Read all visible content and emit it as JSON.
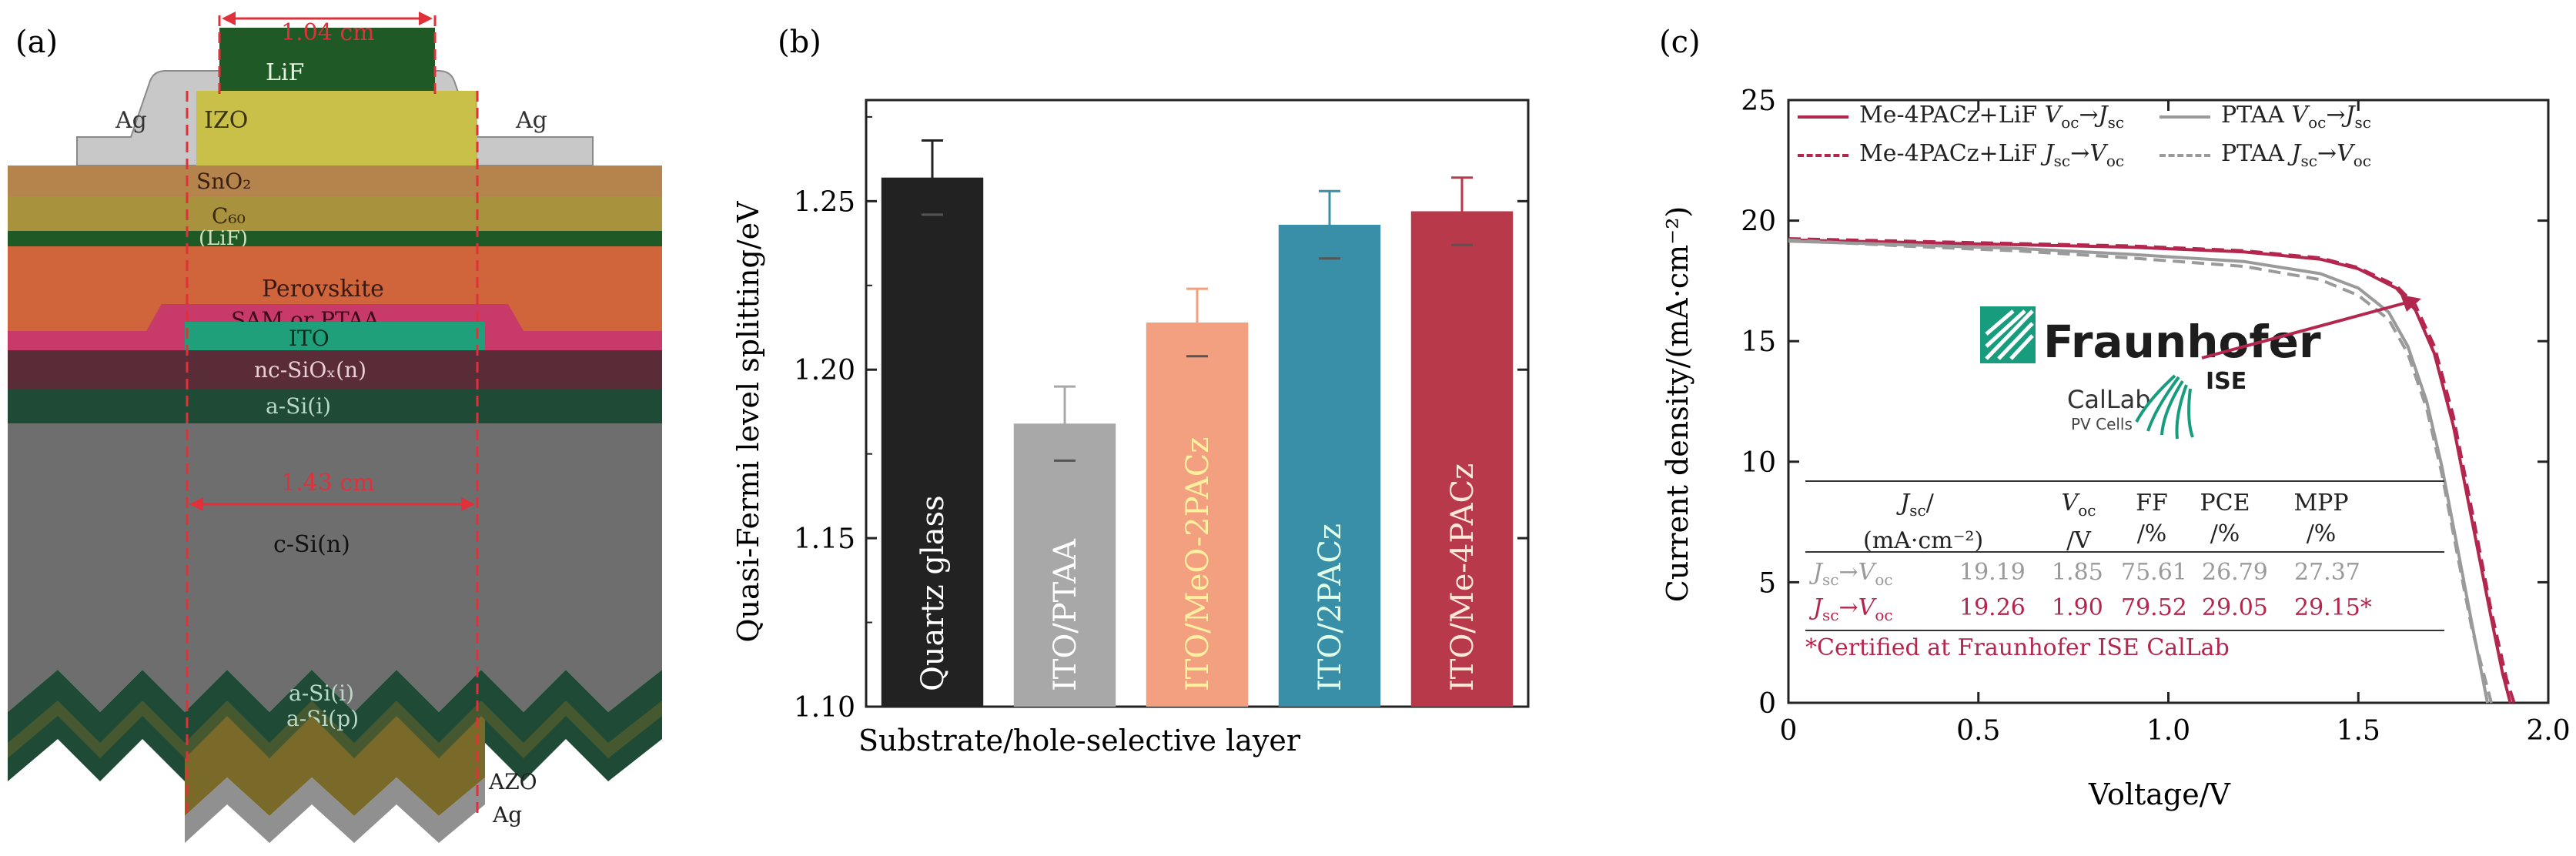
{
  "panels": {
    "a": {
      "label": "(a)",
      "width_annotation": "1.04 cm",
      "width_annotation_lower": "1.43 cm",
      "layers": {
        "lif_top": "LiF",
        "izo": "IZO",
        "ag_left": "Ag",
        "ag_right": "Ag",
        "sno2": "SnO₂",
        "c60": "C₆₀",
        "lif_paren": "(LiF)",
        "perovskite": "Perovskite",
        "sam": "SAM or PTAA",
        "ito": "ITO",
        "ncsiox": "nc-SiOₓ(n)",
        "asi_i_top": "a-Si(i)",
        "csi": "c-Si(n)",
        "asi_i_bottom": "a-Si(i)",
        "asi_p": "a-Si(p)",
        "azo": "AZO",
        "ag_bottom": "Ag"
      },
      "colors": {
        "lif": "#1f5a26",
        "izo": "#c9c04a",
        "ag": "#c8c8c8",
        "sno2": "#b5834c",
        "c60": "#a8923e",
        "perovskite": "#d0643a",
        "sam": "#c83a6a",
        "ito": "#1fa07a",
        "ncsiox": "#5a2c38",
        "asi": "#1f4a36",
        "csi": "#6e6e6e",
        "dash": "#e0303a"
      }
    },
    "b": {
      "label": "(b)"
    },
    "c": {
      "label": "(c)",
      "logo": {
        "brand": "Fraunhofer",
        "division": "ISE",
        "calab": "CalLab",
        "pv": "PV Cells"
      },
      "table": {
        "headers": [
          [
            "J_sc/",
            "(mA·cm⁻²)"
          ],
          [
            "V_oc",
            "/V"
          ],
          [
            "FF",
            "/%"
          ],
          [
            "PCE",
            "/%"
          ],
          [
            "MPP",
            "/%"
          ]
        ],
        "rows": [
          {
            "label_j": "J",
            "label_sub1": "sc",
            "label_arrow": "→",
            "label_v": "V",
            "label_sub2": "oc",
            "values": [
              "19.19",
              "1.85",
              "75.61",
              "26.79",
              "27.37"
            ],
            "color": "#9a9a9a"
          },
          {
            "label_j": "J",
            "label_sub1": "sc",
            "label_arrow": "→",
            "label_v": "V",
            "label_sub2": "oc",
            "values": [
              "19.26",
              "1.90",
              "79.52",
              "29.05",
              "29.15*"
            ],
            "color": "#b3264e"
          }
        ],
        "footnote": "*Certified at Fraunhofer ISE CalLab"
      }
    }
  },
  "chart_data": [
    {
      "type": "bar",
      "panel": "b",
      "ylabel": "Quasi-Fermi level splitting/eV",
      "xlabel": "Substrate/hole-selective layer",
      "ylim": [
        1.1,
        1.28
      ],
      "yticks": [
        "1.10",
        "1.15",
        "1.20",
        "1.25"
      ],
      "categories": [
        "Quartz glass",
        "ITO/PTAA",
        "ITO/MeO-2PACz",
        "ITO/2PACz",
        "ITO/Me-4PACz"
      ],
      "values": [
        1.257,
        1.184,
        1.214,
        1.243,
        1.247
      ],
      "errors": [
        0.011,
        0.011,
        0.01,
        0.01,
        0.01
      ],
      "colors": [
        "#222222",
        "#a8a8a8",
        "#f2a080",
        "#3a8fa8",
        "#b83a4a"
      ],
      "label_colors": [
        "#ffffff",
        "#ffffff",
        "#fff0a0",
        "#e0ffe8",
        "#ffe8d8"
      ]
    },
    {
      "type": "line",
      "panel": "c",
      "xlabel": "Voltage/V",
      "ylabel": "Current density/(mA·cm⁻²)",
      "xlim": [
        0,
        2.0
      ],
      "ylim": [
        0,
        25
      ],
      "xticks": [
        "0",
        "0.5",
        "1.0",
        "1.5",
        "2.0"
      ],
      "yticks": [
        "0",
        "5",
        "10",
        "15",
        "20",
        "25"
      ],
      "series": [
        {
          "name": "Me-4PACz+LiF V_oc→J_sc",
          "color": "#b3264e",
          "dash": false,
          "x": [
            0,
            0.3,
            0.6,
            0.9,
            1.2,
            1.4,
            1.5,
            1.6,
            1.65,
            1.7,
            1.75,
            1.8,
            1.85,
            1.88,
            1.9
          ],
          "y": [
            19.2,
            19.1,
            19.0,
            18.9,
            18.7,
            18.4,
            18.0,
            17.2,
            16.3,
            14.5,
            11.5,
            7.5,
            3.5,
            1.2,
            0
          ]
        },
        {
          "name": "Me-4PACz+LiF J_sc→V_oc",
          "color": "#b3264e",
          "dash": true,
          "x": [
            0,
            0.3,
            0.6,
            0.9,
            1.2,
            1.4,
            1.5,
            1.6,
            1.65,
            1.7,
            1.75,
            1.8,
            1.85,
            1.89,
            1.91
          ],
          "y": [
            19.25,
            19.15,
            19.05,
            18.95,
            18.75,
            18.45,
            18.05,
            17.3,
            16.5,
            14.8,
            11.9,
            7.9,
            3.8,
            1.0,
            0
          ]
        },
        {
          "name": "PTAA V_oc→J_sc",
          "color": "#9a9a9a",
          "dash": false,
          "x": [
            0,
            0.3,
            0.6,
            0.9,
            1.2,
            1.4,
            1.5,
            1.58,
            1.63,
            1.68,
            1.72,
            1.76,
            1.8,
            1.84
          ],
          "y": [
            19.15,
            19.0,
            18.85,
            18.6,
            18.3,
            17.8,
            17.2,
            16.2,
            14.8,
            12.5,
            9.8,
            6.5,
            3.2,
            0
          ]
        },
        {
          "name": "PTAA J_sc→V_oc",
          "color": "#9a9a9a",
          "dash": true,
          "x": [
            0,
            0.3,
            0.6,
            0.9,
            1.2,
            1.4,
            1.5,
            1.58,
            1.63,
            1.68,
            1.72,
            1.76,
            1.8,
            1.85
          ],
          "y": [
            19.2,
            18.95,
            18.75,
            18.45,
            18.1,
            17.55,
            16.9,
            15.9,
            14.5,
            12.2,
            9.5,
            6.2,
            3.0,
            0
          ]
        }
      ],
      "legend_placement": "top"
    }
  ]
}
